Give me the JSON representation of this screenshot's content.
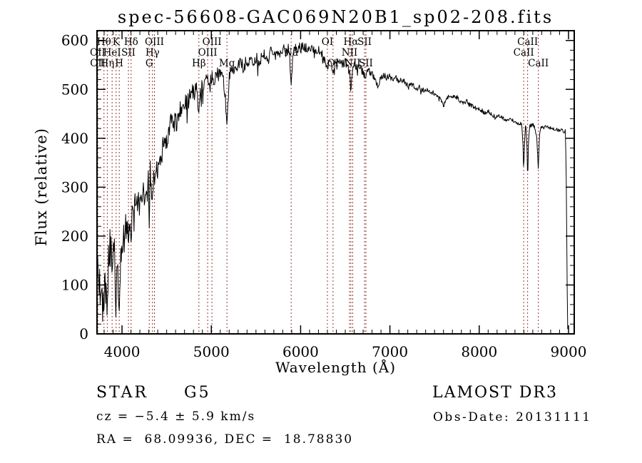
{
  "title": "spec-56608-GAC069N20B1_sp02-208.fits",
  "annotations": {
    "object_class": "STAR",
    "subclass": "G5",
    "cz_text": "cz = −5.4 ± 5.9 km/s",
    "radec_text": "RA =  68.09936, DEC =  18.78830",
    "survey": "LAMOST DR3",
    "obs_date": "Obs-Date: 20131111"
  },
  "chart_data": {
    "type": "line",
    "title": "spec-56608-GAC069N20B1_sp02-208.fits",
    "xlabel": "Wavelength (Å)",
    "ylabel": "Flux (relative)",
    "xlim": [
      3720,
      9064
    ],
    "ylim": [
      0,
      620
    ],
    "xticks_major": [
      4000,
      5000,
      6000,
      7000,
      8000,
      9000
    ],
    "x_minor_step": 100,
    "yticks_major": [
      0,
      100,
      200,
      300,
      400,
      500,
      600
    ],
    "y_minor_step": 20,
    "grid": false,
    "legend": "none",
    "line_color": "#000000",
    "frame_color": "#000000",
    "marker_line_color": "#993333",
    "noise_seed": 1337,
    "spectral_lines": [
      {
        "wavelength": 3727,
        "label": "OII",
        "row": 2
      },
      {
        "wavelength": 3729,
        "label": "OII",
        "row": 3
      },
      {
        "wavelength": 3798,
        "label": "Hθ",
        "row": 1
      },
      {
        "wavelength": 3835,
        "label": "Hη",
        "row": 3
      },
      {
        "wavelength": 3889,
        "label": "HeI",
        "row": 2
      },
      {
        "wavelength": 3934,
        "label": "K",
        "row": 1
      },
      {
        "wavelength": 3969,
        "label": "H",
        "row": 3
      },
      {
        "wavelength": 4072,
        "label": "SII",
        "row": 2
      },
      {
        "wavelength": 4102,
        "label": "Hδ",
        "row": 1
      },
      {
        "wavelength": 4305,
        "label": "G",
        "row": 3
      },
      {
        "wavelength": 4341,
        "label": "Hγ",
        "row": 2
      },
      {
        "wavelength": 4363,
        "label": "OIII",
        "row": 1
      },
      {
        "wavelength": 4861,
        "label": "Hβ",
        "row": 3
      },
      {
        "wavelength": 4959,
        "label": "OIII",
        "row": 2
      },
      {
        "wavelength": 5007,
        "label": "OIII",
        "row": 1
      },
      {
        "wavelength": 5175,
        "label": "Mg",
        "row": 3
      },
      {
        "wavelength": 5894,
        "label": "Na",
        "row": 2
      },
      {
        "wavelength": 6300,
        "label": "OI",
        "row": 1
      },
      {
        "wavelength": 6363,
        "label": "OI",
        "row": 3
      },
      {
        "wavelength": 6548,
        "label": "NII",
        "row": 2
      },
      {
        "wavelength": 6563,
        "label": "Hα",
        "row": 1
      },
      {
        "wavelength": 6583,
        "label": "NII",
        "row": 3
      },
      {
        "wavelength": 6716,
        "label": "SII",
        "row": 1
      },
      {
        "wavelength": 6731,
        "label": "SII",
        "row": 3
      },
      {
        "wavelength": 8498,
        "label": "CaII",
        "row": 2
      },
      {
        "wavelength": 8542,
        "label": "CaII",
        "row": 1
      },
      {
        "wavelength": 8662,
        "label": "CaII",
        "row": 3
      }
    ],
    "spectrum_anchors": [
      [
        3722,
        95
      ],
      [
        3726,
        180
      ],
      [
        3730,
        90
      ],
      [
        3736,
        150
      ],
      [
        3742,
        62
      ],
      [
        3748,
        125
      ],
      [
        3755,
        50
      ],
      [
        3762,
        115
      ],
      [
        3768,
        78
      ],
      [
        3775,
        150
      ],
      [
        3782,
        42
      ],
      [
        3790,
        105
      ],
      [
        3798,
        58
      ],
      [
        3806,
        125
      ],
      [
        3813,
        75
      ],
      [
        3820,
        140
      ],
      [
        3828,
        88
      ],
      [
        3835,
        48
      ],
      [
        3843,
        120
      ],
      [
        3850,
        165
      ],
      [
        3858,
        108
      ],
      [
        3865,
        185
      ],
      [
        3872,
        135
      ],
      [
        3880,
        190
      ],
      [
        3889,
        120
      ],
      [
        3897,
        180
      ],
      [
        3905,
        148
      ],
      [
        3913,
        192
      ],
      [
        3920,
        138
      ],
      [
        3928,
        95
      ],
      [
        3933,
        42
      ],
      [
        3940,
        110
      ],
      [
        3948,
        158
      ],
      [
        3955,
        95
      ],
      [
        3962,
        70
      ],
      [
        3969,
        52
      ],
      [
        3977,
        115
      ],
      [
        3985,
        168
      ],
      [
        3993,
        135
      ],
      [
        4000,
        175
      ],
      [
        4015,
        205
      ],
      [
        4030,
        185
      ],
      [
        4045,
        228
      ],
      [
        4060,
        210
      ],
      [
        4072,
        195
      ],
      [
        4088,
        235
      ],
      [
        4102,
        185
      ],
      [
        4115,
        245
      ],
      [
        4130,
        225
      ],
      [
        4145,
        262
      ],
      [
        4160,
        240
      ],
      [
        4175,
        275
      ],
      [
        4190,
        255
      ],
      [
        4205,
        285
      ],
      [
        4220,
        268
      ],
      [
        4235,
        295
      ],
      [
        4250,
        278
      ],
      [
        4265,
        305
      ],
      [
        4280,
        288
      ],
      [
        4295,
        318
      ],
      [
        4300,
        240
      ],
      [
        4305,
        215
      ],
      [
        4310,
        250
      ],
      [
        4315,
        340
      ],
      [
        4328,
        310
      ],
      [
        4336,
        280
      ],
      [
        4341,
        245
      ],
      [
        4346,
        290
      ],
      [
        4352,
        325
      ],
      [
        4363,
        300
      ],
      [
        4378,
        342
      ],
      [
        4395,
        325
      ],
      [
        4412,
        358
      ],
      [
        4430,
        340
      ],
      [
        4450,
        375
      ],
      [
        4470,
        392
      ],
      [
        4490,
        378
      ],
      [
        4510,
        405
      ],
      [
        4530,
        425
      ],
      [
        4550,
        438
      ],
      [
        4570,
        420
      ],
      [
        4590,
        435
      ],
      [
        4610,
        428
      ],
      [
        4630,
        448
      ],
      [
        4650,
        460
      ],
      [
        4670,
        452
      ],
      [
        4690,
        470
      ],
      [
        4710,
        478
      ],
      [
        4730,
        468
      ],
      [
        4750,
        482
      ],
      [
        4770,
        490
      ],
      [
        4790,
        498
      ],
      [
        4810,
        492
      ],
      [
        4830,
        500
      ],
      [
        4845,
        488
      ],
      [
        4861,
        452
      ],
      [
        4878,
        498
      ],
      [
        4895,
        508
      ],
      [
        4912,
        502
      ],
      [
        4930,
        512
      ],
      [
        4950,
        518
      ],
      [
        4970,
        510
      ],
      [
        4990,
        520
      ],
      [
        5010,
        525
      ],
      [
        5030,
        518
      ],
      [
        5050,
        528
      ],
      [
        5070,
        532
      ],
      [
        5090,
        525
      ],
      [
        5110,
        535
      ],
      [
        5130,
        528
      ],
      [
        5150,
        500
      ],
      [
        5167,
        452
      ],
      [
        5175,
        425
      ],
      [
        5185,
        460
      ],
      [
        5200,
        520
      ],
      [
        5220,
        540
      ],
      [
        5240,
        532
      ],
      [
        5260,
        545
      ],
      [
        5280,
        538
      ],
      [
        5300,
        548
      ],
      [
        5330,
        552
      ],
      [
        5360,
        545
      ],
      [
        5390,
        556
      ],
      [
        5420,
        560
      ],
      [
        5450,
        553
      ],
      [
        5480,
        562
      ],
      [
        5510,
        566
      ],
      [
        5540,
        558
      ],
      [
        5570,
        568
      ],
      [
        5600,
        572
      ],
      [
        5630,
        565
      ],
      [
        5660,
        574
      ],
      [
        5690,
        578
      ],
      [
        5720,
        570
      ],
      [
        5750,
        580
      ],
      [
        5780,
        574
      ],
      [
        5810,
        582
      ],
      [
        5840,
        576
      ],
      [
        5865,
        584
      ],
      [
        5880,
        560
      ],
      [
        5894,
        498
      ],
      [
        5908,
        555
      ],
      [
        5925,
        580
      ],
      [
        5945,
        585
      ],
      [
        5965,
        578
      ],
      [
        5985,
        588
      ],
      [
        6005,
        582
      ],
      [
        6030,
        590
      ],
      [
        6060,
        584
      ],
      [
        6090,
        588
      ],
      [
        6120,
        580
      ],
      [
        6150,
        584
      ],
      [
        6180,
        576
      ],
      [
        6210,
        580
      ],
      [
        6240,
        572
      ],
      [
        6270,
        566
      ],
      [
        6300,
        540
      ],
      [
        6320,
        565
      ],
      [
        6340,
        558
      ],
      [
        6363,
        535
      ],
      [
        6385,
        560
      ],
      [
        6410,
        555
      ],
      [
        6440,
        560
      ],
      [
        6470,
        552
      ],
      [
        6500,
        556
      ],
      [
        6530,
        548
      ],
      [
        6548,
        540
      ],
      [
        6563,
        495
      ],
      [
        6580,
        542
      ],
      [
        6600,
        550
      ],
      [
        6630,
        545
      ],
      [
        6660,
        548
      ],
      [
        6690,
        540
      ],
      [
        6716,
        528
      ],
      [
        6731,
        525
      ],
      [
        6750,
        540
      ],
      [
        6780,
        535
      ],
      [
        6810,
        528
      ],
      [
        6840,
        515
      ],
      [
        6870,
        505
      ],
      [
        6900,
        525
      ],
      [
        6930,
        530
      ],
      [
        6960,
        525
      ],
      [
        6990,
        528
      ],
      [
        7020,
        522
      ],
      [
        7060,
        525
      ],
      [
        7100,
        518
      ],
      [
        7140,
        520
      ],
      [
        7180,
        512
      ],
      [
        7220,
        508
      ],
      [
        7260,
        510
      ],
      [
        7300,
        502
      ],
      [
        7340,
        505
      ],
      [
        7380,
        498
      ],
      [
        7420,
        500
      ],
      [
        7460,
        495
      ],
      [
        7500,
        492
      ],
      [
        7540,
        488
      ],
      [
        7580,
        475
      ],
      [
        7605,
        468
      ],
      [
        7630,
        480
      ],
      [
        7660,
        486
      ],
      [
        7700,
        482
      ],
      [
        7740,
        485
      ],
      [
        7780,
        478
      ],
      [
        7820,
        472
      ],
      [
        7860,
        475
      ],
      [
        7900,
        468
      ],
      [
        7940,
        465
      ],
      [
        7980,
        460
      ],
      [
        8020,
        458
      ],
      [
        8060,
        452
      ],
      [
        8100,
        455
      ],
      [
        8140,
        448
      ],
      [
        8180,
        445
      ],
      [
        8220,
        448
      ],
      [
        8260,
        442
      ],
      [
        8300,
        438
      ],
      [
        8340,
        440
      ],
      [
        8380,
        435
      ],
      [
        8420,
        432
      ],
      [
        8450,
        430
      ],
      [
        8475,
        428
      ],
      [
        8490,
        390
      ],
      [
        8498,
        330
      ],
      [
        8508,
        395
      ],
      [
        8520,
        428
      ],
      [
        8533,
        395
      ],
      [
        8542,
        318
      ],
      [
        8552,
        390
      ],
      [
        8565,
        428
      ],
      [
        8585,
        425
      ],
      [
        8605,
        428
      ],
      [
        8625,
        422
      ],
      [
        8645,
        400
      ],
      [
        8662,
        338
      ],
      [
        8675,
        408
      ],
      [
        8690,
        425
      ],
      [
        8720,
        422
      ],
      [
        8750,
        425
      ],
      [
        8780,
        420
      ],
      [
        8810,
        422
      ],
      [
        8840,
        418
      ],
      [
        8870,
        420
      ],
      [
        8900,
        415
      ],
      [
        8930,
        418
      ],
      [
        8950,
        412
      ],
      [
        8965,
        418
      ],
      [
        8975,
        310
      ],
      [
        8985,
        95
      ],
      [
        8991,
        8
      ]
    ],
    "noise_profile": [
      [
        3722,
        40
      ],
      [
        3950,
        38
      ],
      [
        4100,
        30
      ],
      [
        4400,
        22
      ],
      [
        4700,
        18
      ],
      [
        5000,
        16
      ],
      [
        5400,
        13
      ],
      [
        5900,
        11
      ],
      [
        6300,
        9
      ],
      [
        6800,
        7
      ],
      [
        7300,
        6
      ],
      [
        7800,
        5
      ],
      [
        8300,
        4
      ],
      [
        8600,
        4
      ],
      [
        8900,
        3
      ],
      [
        8991,
        2
      ]
    ]
  }
}
